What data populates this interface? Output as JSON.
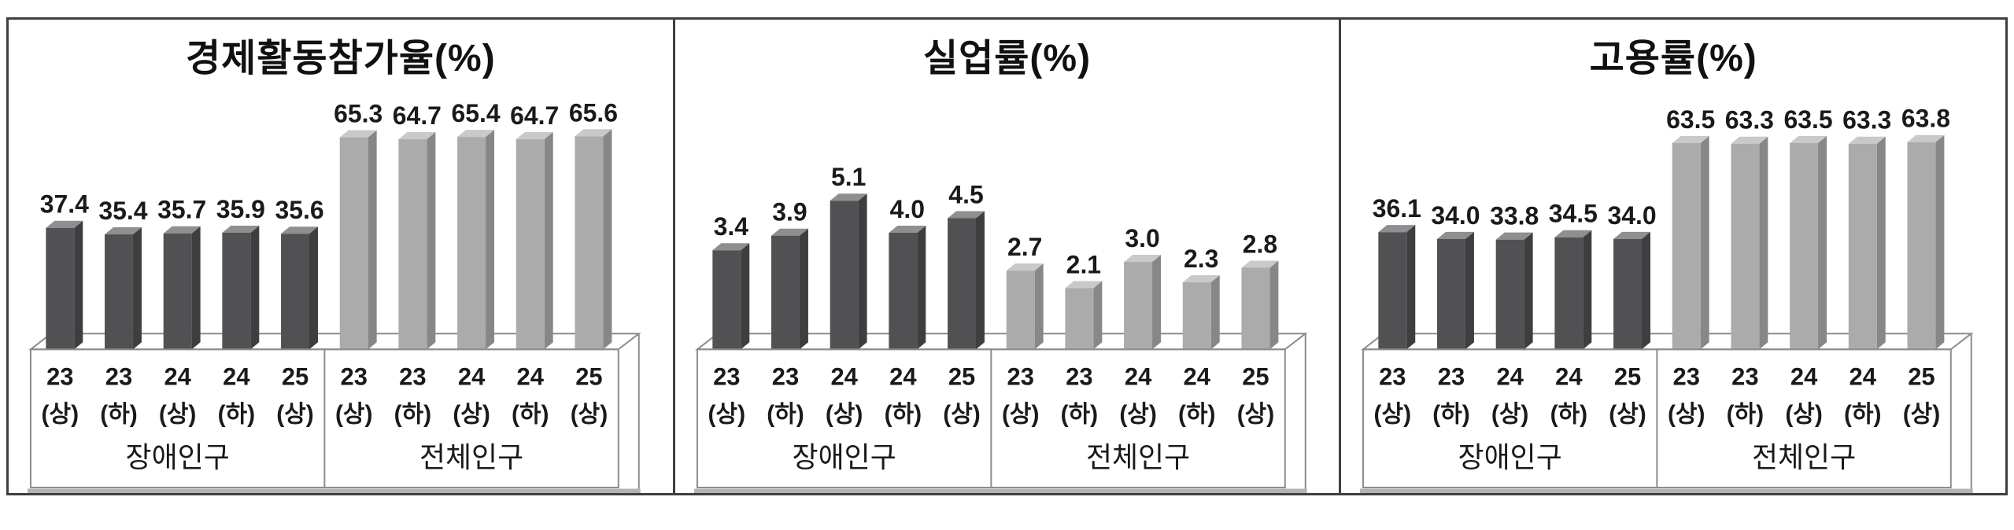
{
  "colors": {
    "frame_border": "#3f3f3f",
    "axis_line": "#8c8c8c",
    "base_line": "#b3b3b3",
    "text": "#1a1a1a",
    "dark_bar": {
      "front": "#515154",
      "side": "#3e3e41",
      "top": "#8f8f92"
    },
    "light_bar": {
      "front": "#ababab",
      "side": "#878787",
      "top": "#c9c9c9"
    }
  },
  "chart_data": [
    {
      "type": "bar",
      "title": "경제활동참가율(%)",
      "categories_top": [
        "23",
        "23",
        "24",
        "24",
        "25"
      ],
      "categories_bottom": [
        "(상)",
        "(하)",
        "(상)",
        "(하)",
        "(상)"
      ],
      "groups": [
        {
          "name": "장애인구",
          "palette": "dark_bar",
          "values": [
            "37.4",
            "35.4",
            "35.7",
            "35.9",
            "35.6"
          ]
        },
        {
          "name": "전체인구",
          "palette": "light_bar",
          "values": [
            "65.3",
            "64.7",
            "65.4",
            "64.7",
            "65.6"
          ]
        }
      ],
      "ylim": [
        0,
        70
      ],
      "grid": false,
      "legend": "none"
    },
    {
      "type": "bar",
      "title": "실업률(%)",
      "categories_top": [
        "23",
        "23",
        "24",
        "24",
        "25"
      ],
      "categories_bottom": [
        "(상)",
        "(하)",
        "(상)",
        "(하)",
        "(상)"
      ],
      "groups": [
        {
          "name": "장애인구",
          "palette": "dark_bar",
          "values": [
            "3.4",
            "3.9",
            "5.1",
            "4.0",
            "4.5"
          ]
        },
        {
          "name": "전체인구",
          "palette": "light_bar",
          "values": [
            "2.7",
            "2.1",
            "3.0",
            "2.3",
            "2.8"
          ]
        }
      ],
      "ylim": [
        0,
        7.8
      ],
      "grid": false,
      "legend": "none"
    },
    {
      "type": "bar",
      "title": "고용률(%)",
      "categories_top": [
        "23",
        "23",
        "24",
        "24",
        "25"
      ],
      "categories_bottom": [
        "(상)",
        "(하)",
        "(상)",
        "(하)",
        "(상)"
      ],
      "groups": [
        {
          "name": "장애인구",
          "palette": "dark_bar",
          "values": [
            "36.1",
            "34.0",
            "33.8",
            "34.5",
            "34.0"
          ]
        },
        {
          "name": "전체인구",
          "palette": "light_bar",
          "values": [
            "63.5",
            "63.3",
            "63.5",
            "63.3",
            "63.8"
          ]
        }
      ],
      "ylim": [
        0,
        70
      ],
      "grid": false,
      "legend": "none"
    }
  ]
}
